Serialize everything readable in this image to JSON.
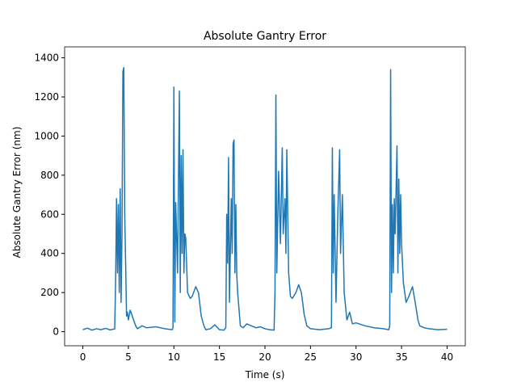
{
  "chart_data": {
    "type": "line",
    "title": "Absolute Gantry Error",
    "xlabel": "Time (s)",
    "ylabel": "Absolute Gantry Error (nm)",
    "color": "#1f77b4",
    "x": [
      0,
      0.5,
      1,
      1.5,
      2,
      2.5,
      3,
      3.5,
      3.6,
      3.7,
      3.8,
      3.9,
      4.0,
      4.1,
      4.2,
      4.3,
      4.4,
      4.5,
      4.6,
      4.7,
      4.8,
      4.9,
      5.0,
      5.2,
      5.5,
      5.8,
      6,
      6.5,
      7,
      8,
      9,
      9.8,
      9.9,
      10.0,
      10.1,
      10.2,
      10.4,
      10.6,
      10.7,
      10.8,
      10.9,
      11.0,
      11.1,
      11.2,
      11.3,
      11.5,
      11.8,
      12,
      12.4,
      12.7,
      13,
      13.3,
      13.5,
      14,
      14.5,
      15,
      15.5,
      15.7,
      15.8,
      15.9,
      16.0,
      16.1,
      16.3,
      16.4,
      16.5,
      16.6,
      16.7,
      16.8,
      16.9,
      17.0,
      17.3,
      17.6,
      18,
      18.5,
      19,
      19.5,
      20,
      20.5,
      21,
      21.1,
      21.2,
      21.3,
      21.5,
      21.7,
      21.9,
      22.0,
      22.2,
      22.3,
      22.4,
      22.6,
      22.8,
      23,
      23.4,
      23.7,
      24,
      24.3,
      24.6,
      25,
      26,
      27,
      27.3,
      27.4,
      27.5,
      27.6,
      27.8,
      28.0,
      28.2,
      28.3,
      28.5,
      28.7,
      29,
      29.3,
      29.6,
      30,
      31,
      32,
      33,
      33.6,
      33.7,
      33.8,
      33.9,
      34.0,
      34.1,
      34.2,
      34.3,
      34.5,
      34.6,
      34.7,
      34.8,
      34.9,
      35,
      35.2,
      35.5,
      35.8,
      36.2,
      36.5,
      36.8,
      37,
      37.5,
      38,
      39,
      40
    ],
    "values": [
      10,
      18,
      8,
      15,
      10,
      17,
      9,
      14,
      260,
      680,
      300,
      650,
      200,
      730,
      150,
      500,
      1330,
      1350,
      600,
      350,
      80,
      100,
      60,
      110,
      70,
      30,
      15,
      30,
      20,
      25,
      15,
      10,
      20,
      1250,
      50,
      660,
      300,
      1230,
      200,
      900,
      400,
      930,
      300,
      500,
      480,
      200,
      170,
      180,
      230,
      200,
      80,
      30,
      10,
      15,
      35,
      10,
      8,
      20,
      600,
      350,
      890,
      150,
      680,
      400,
      960,
      980,
      300,
      650,
      300,
      200,
      30,
      20,
      40,
      30,
      20,
      25,
      15,
      10,
      8,
      200,
      1210,
      300,
      820,
      450,
      940,
      500,
      680,
      400,
      930,
      300,
      180,
      170,
      200,
      240,
      200,
      90,
      30,
      15,
      10,
      15,
      20,
      940,
      300,
      700,
      150,
      600,
      930,
      400,
      700,
      200,
      60,
      100,
      40,
      45,
      30,
      20,
      15,
      10,
      30,
      1340,
      200,
      650,
      300,
      680,
      500,
      950,
      300,
      780,
      400,
      700,
      450,
      250,
      150,
      180,
      230,
      150,
      60,
      30,
      20,
      15,
      10,
      12
    ],
    "xlim": [
      -2.0,
      42.0
    ],
    "ylim": [
      -72,
      1456
    ],
    "xticks": [
      0,
      5,
      10,
      15,
      20,
      25,
      30,
      35,
      40
    ],
    "yticks": [
      0,
      200,
      400,
      600,
      800,
      1000,
      1200,
      1400
    ]
  }
}
